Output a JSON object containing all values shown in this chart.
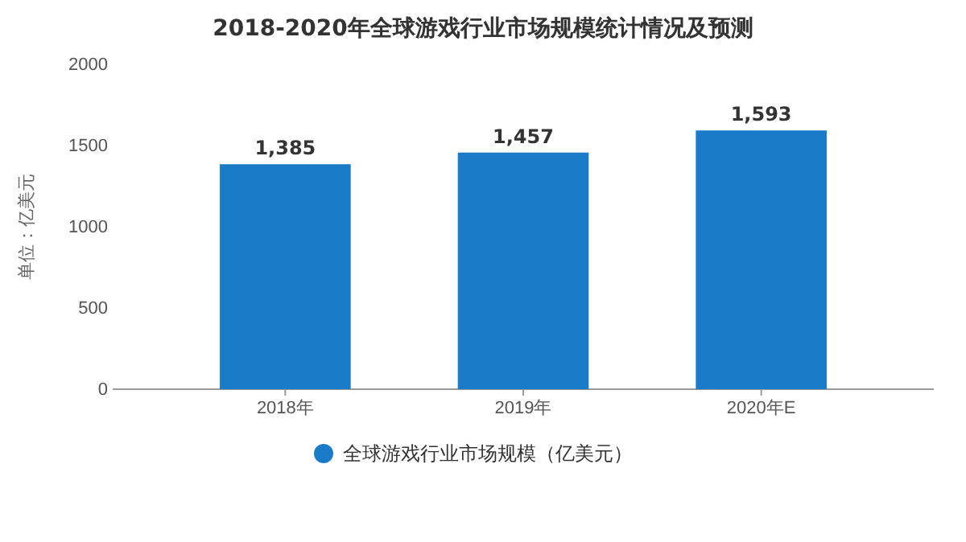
{
  "chart_data": {
    "type": "bar",
    "title": "2018-2020年全球游戏行业市场规模统计情况及预测",
    "ylabel": "单位：亿美元",
    "categories": [
      "2018年",
      "2019年",
      "2020年E"
    ],
    "series": [
      {
        "name": "全球游戏行业市场规模（亿美元）",
        "color": "#1a7cc8",
        "values": [
          1385,
          1457,
          1593
        ]
      }
    ],
    "value_labels": [
      "1,385",
      "1,457",
      "1,593"
    ],
    "ylim": [
      0,
      2000
    ],
    "yticks": [
      0,
      500,
      1000,
      1500,
      2000
    ],
    "legend": "bottom"
  }
}
